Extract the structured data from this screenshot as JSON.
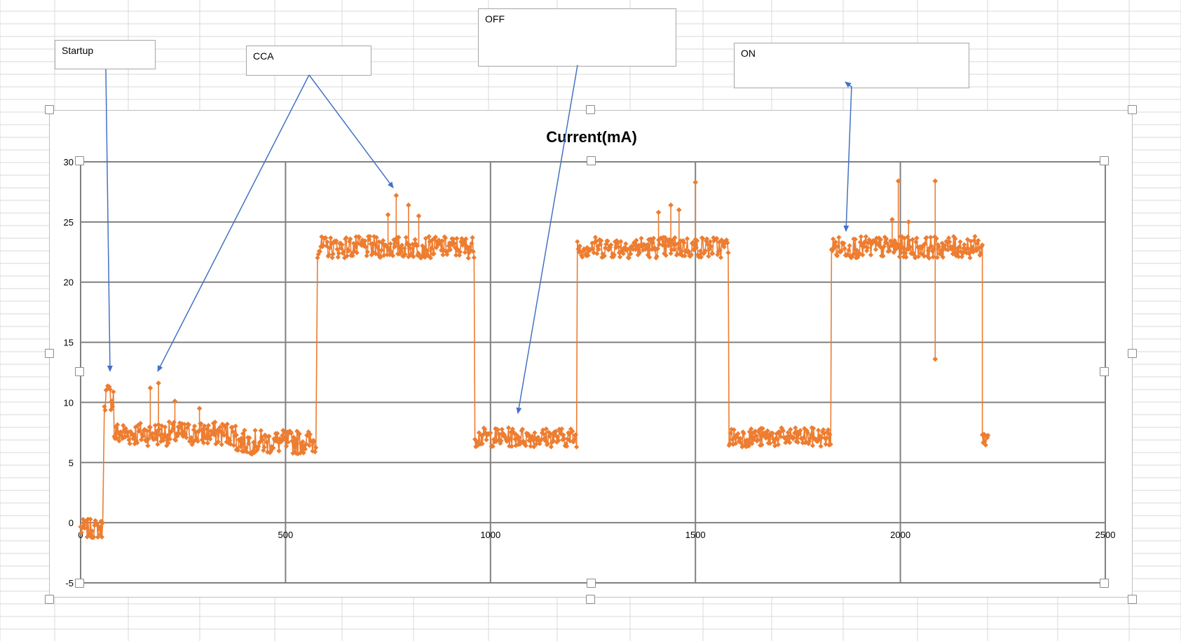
{
  "colors": {
    "series": "#ED7D31",
    "gridline": "#808080",
    "sheet_grid": "#d9d9d9",
    "arrow": "#4472C4",
    "handle_border": "#8c8c8c"
  },
  "callouts": {
    "startup": "Startup",
    "cca": "CCA",
    "off": "OFF",
    "on": "ON"
  },
  "chart_data": {
    "type": "scatter",
    "title": "Current(mA)",
    "xlabel": "",
    "ylabel": "",
    "xlim": [
      0,
      2500
    ],
    "ylim": [
      -5,
      30
    ],
    "x_ticks": [
      0,
      500,
      1000,
      1500,
      2000,
      2500
    ],
    "y_ticks": [
      -5,
      0,
      5,
      10,
      15,
      20,
      25,
      30
    ],
    "grid": true,
    "legend": "none",
    "series": [
      {
        "segments": [
          {
            "x_start": 0,
            "x_end": 55,
            "mean": -0.5,
            "spread": 0.8
          },
          {
            "x_start": 58,
            "x_end": 80,
            "mean": 10.5,
            "spread": 1.2
          },
          {
            "x_start": 82,
            "x_end": 380,
            "mean": 7.4,
            "spread": 1.0
          },
          {
            "x_start": 380,
            "x_end": 575,
            "mean": 6.7,
            "spread": 1.0
          },
          {
            "x_start": 578,
            "x_end": 960,
            "mean": 22.9,
            "spread": 0.9
          },
          {
            "x_start": 962,
            "x_end": 1210,
            "mean": 7.1,
            "spread": 0.8
          },
          {
            "x_start": 1212,
            "x_end": 1580,
            "mean": 22.9,
            "spread": 0.9
          },
          {
            "x_start": 1582,
            "x_end": 1830,
            "mean": 7.1,
            "spread": 0.8
          },
          {
            "x_start": 1832,
            "x_end": 2200,
            "mean": 22.9,
            "spread": 0.9
          },
          {
            "x_start": 2200,
            "x_end": 2215,
            "mean": 7.0,
            "spread": 0.6
          }
        ],
        "spikes": [
          {
            "x": 170,
            "y": 11.2
          },
          {
            "x": 190,
            "y": 11.6
          },
          {
            "x": 230,
            "y": 10.1
          },
          {
            "x": 290,
            "y": 9.5
          },
          {
            "x": 770,
            "y": 27.2
          },
          {
            "x": 750,
            "y": 25.6
          },
          {
            "x": 800,
            "y": 26.4
          },
          {
            "x": 825,
            "y": 25.5
          },
          {
            "x": 1410,
            "y": 25.8
          },
          {
            "x": 1440,
            "y": 26.4
          },
          {
            "x": 1460,
            "y": 26.0
          },
          {
            "x": 1500,
            "y": 28.3
          },
          {
            "x": 1980,
            "y": 25.2
          },
          {
            "x": 1995,
            "y": 28.4
          },
          {
            "x": 2085,
            "y": 28.4
          },
          {
            "x": 2085,
            "y": 13.6
          },
          {
            "x": 2020,
            "y": 25.0
          }
        ]
      }
    ]
  }
}
